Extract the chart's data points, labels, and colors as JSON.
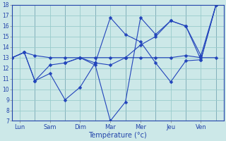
{
  "background_color": "#cce8e8",
  "grid_color": "#99cccc",
  "line_color": "#2244bb",
  "marker_color": "#2244bb",
  "xlabel": "Température (°c)",
  "ylim": [
    7,
    18
  ],
  "xlim": [
    0,
    14
  ],
  "yticks": [
    7,
    8,
    9,
    10,
    11,
    12,
    13,
    14,
    15,
    16,
    17,
    18
  ],
  "day_labels": [
    "Lun",
    "Sam",
    "Dim",
    "Mar",
    "Mer",
    "Jeu",
    "Ven"
  ],
  "day_positions": [
    0.5,
    2.5,
    4.5,
    6.5,
    8.5,
    10.5,
    12.5
  ],
  "day_sep_positions": [
    0,
    1.5,
    3.5,
    5.5,
    7.5,
    9.5,
    11.5,
    13.5
  ],
  "series": [
    {
      "x": [
        0.0,
        0.8,
        1.5,
        2.5,
        3.5,
        4.5,
        5.5,
        6.5,
        7.5,
        8.5,
        9.5,
        10.5,
        11.5,
        12.5,
        13.5
      ],
      "y": [
        13.0,
        13.5,
        13.2,
        13.0,
        13.0,
        13.0,
        13.0,
        13.0,
        13.0,
        13.0,
        13.0,
        13.0,
        13.2,
        13.0,
        13.0
      ]
    },
    {
      "x": [
        0.0,
        0.8,
        1.5,
        2.5,
        3.5,
        4.5,
        5.5,
        6.5,
        7.5
      ],
      "y": [
        13.0,
        13.5,
        10.8,
        11.5,
        9.0,
        10.2,
        12.5,
        12.3,
        13.0
      ]
    },
    {
      "x": [
        0.0,
        0.8,
        1.5,
        2.5,
        3.5,
        4.5,
        5.5,
        6.5,
        7.5,
        8.5,
        9.5,
        10.5,
        11.5,
        12.5,
        13.5
      ],
      "y": [
        13.0,
        13.5,
        10.8,
        12.3,
        12.5,
        13.0,
        12.5,
        16.8,
        15.2,
        14.5,
        12.5,
        10.7,
        12.7,
        12.8,
        18.0
      ]
    },
    {
      "x": [
        3.5,
        4.5,
        5.5,
        6.5,
        7.5,
        8.5,
        9.5,
        10.5,
        11.5,
        12.5,
        13.5
      ],
      "y": [
        12.5,
        13.0,
        12.3,
        7.0,
        8.8,
        16.8,
        15.2,
        16.5,
        16.0,
        12.8,
        18.0
      ]
    },
    {
      "x": [
        7.5,
        8.5,
        9.5,
        10.5,
        11.5,
        12.5,
        13.5
      ],
      "y": [
        13.0,
        14.2,
        15.0,
        16.5,
        16.0,
        13.2,
        18.0
      ]
    }
  ]
}
